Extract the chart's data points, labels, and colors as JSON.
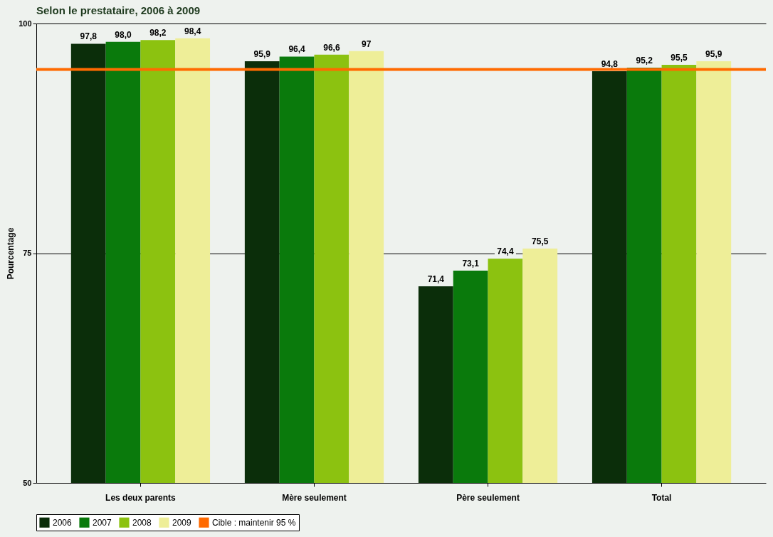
{
  "chart_data": {
    "type": "bar",
    "title": "Selon le prestataire, 2006 à 2009",
    "ylabel": "Pourcentage",
    "categories": [
      "Les deux parents",
      "Mère seulement",
      "Père seulement",
      "Total"
    ],
    "series": [
      {
        "name": "2006",
        "color": "#0b2e0a",
        "values": [
          97.8,
          95.9,
          71.4,
          94.8
        ],
        "value_labels": [
          "97,8",
          "95,9",
          "71,4",
          "94,8"
        ]
      },
      {
        "name": "2007",
        "color": "#0a7a0c",
        "values": [
          98.0,
          96.4,
          73.1,
          95.2
        ],
        "value_labels": [
          "98,0",
          "96,4",
          "73,1",
          "95,2"
        ]
      },
      {
        "name": "2008",
        "color": "#8cc210",
        "values": [
          98.2,
          96.6,
          74.4,
          95.5
        ],
        "value_labels": [
          "98,2",
          "96,6",
          "74,4",
          "95,5"
        ]
      },
      {
        "name": "2009",
        "color": "#eeee98",
        "values": [
          98.4,
          97,
          75.5,
          95.9
        ],
        "value_labels": [
          "98,4",
          "97",
          "75,5",
          "95,9"
        ]
      }
    ],
    "ref_lines": [
      {
        "axis": "y",
        "value": 95,
        "label": "Cible : maintenir 95 %",
        "color": "#ff6a00"
      }
    ],
    "ylim": [
      50,
      100
    ],
    "yticks": [
      50,
      75,
      100
    ],
    "grid": "y",
    "legend": "bottom"
  }
}
